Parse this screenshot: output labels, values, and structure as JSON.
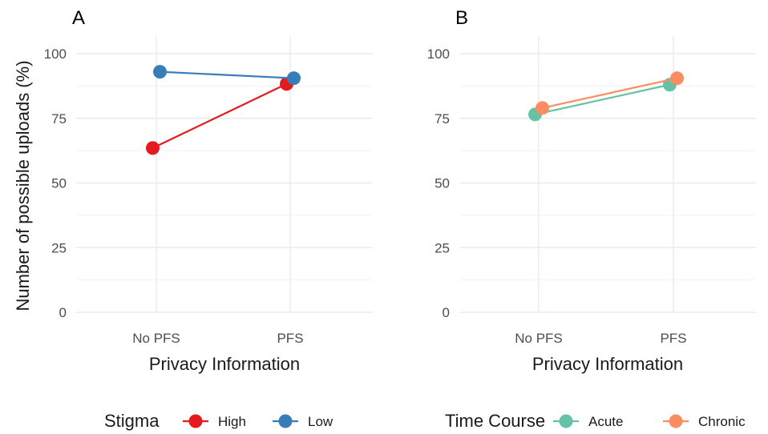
{
  "ylabel": "Number of possible uploads (%)",
  "chart_data": [
    {
      "type": "line",
      "panel": "A",
      "xlabel": "Privacy Information",
      "ylabel": "Number of possible uploads (%)",
      "categories": [
        "No PFS",
        "PFS"
      ],
      "ylim": [
        0,
        100
      ],
      "yticks": [
        0,
        25,
        50,
        75,
        100
      ],
      "grid": true,
      "legend_position": "bottom",
      "legend_title": "Stigma",
      "series": [
        {
          "name": "High",
          "color": "#e41a1c",
          "values": [
            63.5,
            88.3
          ]
        },
        {
          "name": "Low",
          "color": "#377eb8",
          "values": [
            93.0,
            90.5
          ]
        }
      ]
    },
    {
      "type": "line",
      "panel": "B",
      "xlabel": "Privacy Information",
      "categories": [
        "No PFS",
        "PFS"
      ],
      "ylim": [
        0,
        100
      ],
      "yticks": [
        0,
        25,
        50,
        75,
        100
      ],
      "grid": true,
      "legend_position": "bottom",
      "legend_title": "Time Course",
      "series": [
        {
          "name": "Acute",
          "color": "#66c2a5",
          "values": [
            76.5,
            88.0
          ]
        },
        {
          "name": "Chronic",
          "color": "#fc8d62",
          "values": [
            79.0,
            90.5
          ]
        }
      ]
    }
  ]
}
